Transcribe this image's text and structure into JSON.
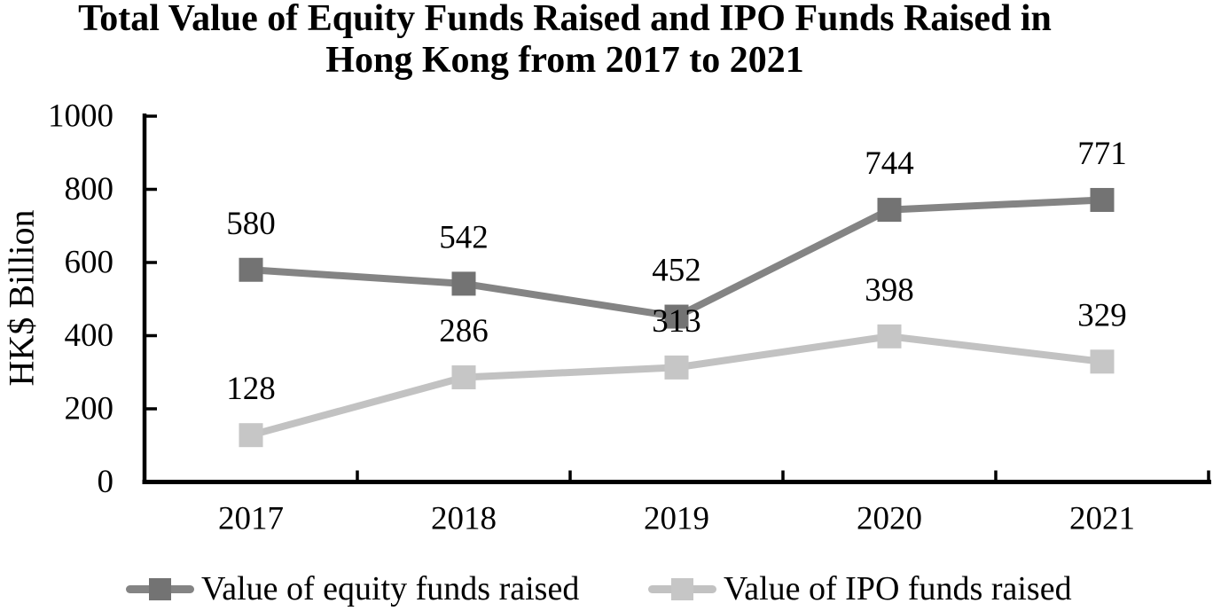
{
  "chart_data": {
    "type": "line",
    "title": "Total Value of Equity Funds Raised and IPO Funds Raised in Hong Kong from 2017 to 2021",
    "title_lines": [
      "Total Value of Equity Funds Raised and IPO Funds Raised in",
      "Hong Kong from 2017 to 2021"
    ],
    "xlabel": "",
    "ylabel": "HK$ Billion",
    "categories": [
      "2017",
      "2018",
      "2019",
      "2020",
      "2021"
    ],
    "y_ticks": [
      0,
      200,
      400,
      600,
      800,
      1000
    ],
    "ylim": [
      0,
      1000
    ],
    "grid": false,
    "marker": "square",
    "data_labels": true,
    "legend_position": "bottom",
    "axis_color": "#000000",
    "text_color": "#000000",
    "series": [
      {
        "name": "Value of equity funds raised",
        "values": [
          580,
          542,
          452,
          744,
          771
        ],
        "color": "#848484",
        "marker_color": "#737373"
      },
      {
        "name": "Value of IPO funds raised",
        "values": [
          128,
          286,
          313,
          398,
          329
        ],
        "color": "#c2c2c2",
        "marker_color": "#c6c6c6"
      }
    ]
  }
}
